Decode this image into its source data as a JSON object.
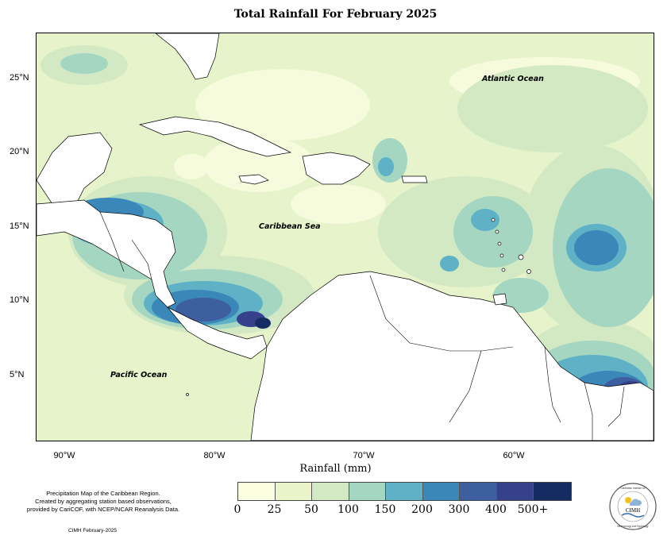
{
  "title": "Total Rainfall For February 2025",
  "axes": {
    "y_ticks": [
      "25°N",
      "20°N",
      "15°N",
      "10°N",
      "5°N"
    ],
    "x_ticks": [
      "90°W",
      "80°W",
      "70°W",
      "60°W"
    ],
    "x_label": "Rainfall (mm)"
  },
  "ocean_labels": {
    "atlantic": "Atlantic Ocean",
    "caribbean": "Caribbean Sea",
    "pacific": "Pacific Ocean"
  },
  "legend": {
    "labels": [
      "0",
      "25",
      "50",
      "100",
      "150",
      "200",
      "300",
      "400",
      "500+"
    ],
    "colors": [
      "#fbfde0",
      "#e9f4c8",
      "#d2e9c4",
      "#a4d6c2",
      "#5fb2c6",
      "#3a88b9",
      "#3e5f9f",
      "#36418c",
      "#142c62"
    ]
  },
  "note": {
    "line1": "Precipitation Map of the Caribbean Region.",
    "line2": "Created by aggregating station based observations,",
    "line3": "provided by CariCOF, with NCEP/NCAR Reanalysis Data."
  },
  "credit": "CIMH February-2025",
  "logo": {
    "center_text": "CIMH",
    "ring_top": "Caribbean Institute for",
    "ring_bottom": "Meteorology and Hydrology"
  }
}
